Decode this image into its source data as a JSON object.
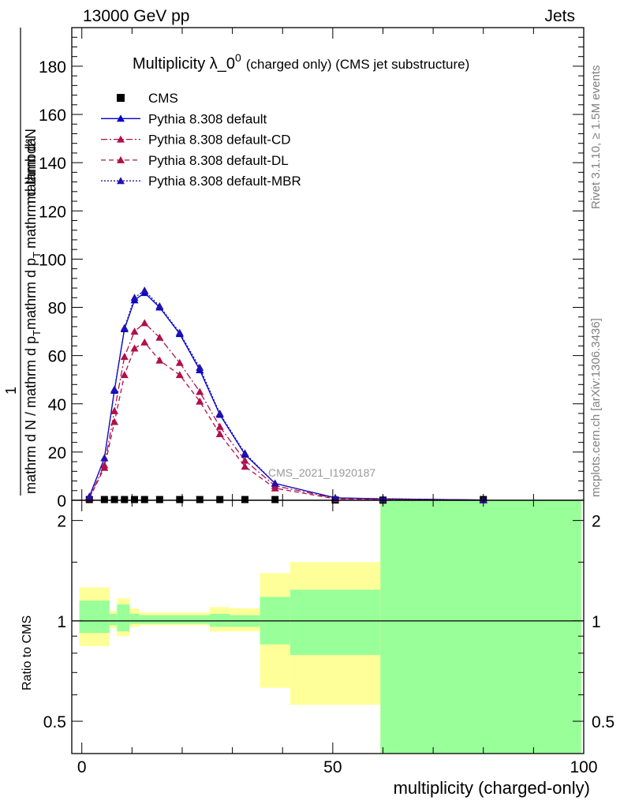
{
  "header": {
    "left": "13000 GeV pp",
    "right": "Jets"
  },
  "side": {
    "rivet": "Rivet 3.1.10, ≥ 1.5M events",
    "mcplots": "mcplots.cern.ch [arXiv:1306.3436]"
  },
  "chart_data": [
    {
      "type": "line",
      "title": "Multiplicity λ_0",
      "title_sup": "0",
      "title_suffix": "(charged only) (CMS jet substructure)",
      "analysis_label": "CMS_2021_I1920187",
      "xlabel": "multiplicity (charged-only)",
      "ylabel": {
        "top": "mathrm d²N",
        "denominator": "mathrm d N / mathrm d p",
        "denominator_sub": "T",
        "mid": "mathrm d p",
        "mid_sub": "T",
        "end": "mathrm d lambda",
        "one": "1"
      },
      "xlim": [
        -2,
        100
      ],
      "ylim": [
        0,
        196
      ],
      "yticks": [
        0,
        20,
        40,
        60,
        80,
        100,
        120,
        140,
        160,
        180
      ],
      "xticks": [
        0,
        50,
        100
      ],
      "legend_position": "top-left",
      "x": [
        1.5,
        4.5,
        6.5,
        8.5,
        10.5,
        12.5,
        15.5,
        19.5,
        23.5,
        27.5,
        32.5,
        38.5,
        50.5,
        60,
        80
      ],
      "series": [
        {
          "name": "CMS",
          "style": "data",
          "color": "#000000",
          "values": [
            0.3,
            0.3,
            0.3,
            0.3,
            0.3,
            0.3,
            0.3,
            0.3,
            0.3,
            0.3,
            0.3,
            0.3,
            0.1,
            0.05,
            0.3
          ]
        },
        {
          "name": "Pythia 8.308 default",
          "style": "solid",
          "color": "#0000cc",
          "values": [
            1.5,
            17.5,
            45.5,
            71,
            83,
            86,
            80,
            69,
            54,
            35.5,
            19,
            7,
            1,
            0.6,
            0.1
          ]
        },
        {
          "name": "Pythia 8.308 default-CD",
          "style": "dashdot",
          "color": "#b0104a",
          "values": [
            1.0,
            14.5,
            37,
            59.5,
            70,
            73.5,
            67.5,
            57,
            45,
            30.5,
            16.5,
            6,
            0.8,
            0.5,
            0.1
          ]
        },
        {
          "name": "Pythia 8.308 default-DL",
          "style": "dashed",
          "color": "#b0104a",
          "values": [
            0.8,
            13.5,
            32.5,
            52,
            63,
            65.5,
            58,
            52,
            41,
            27.5,
            14,
            5,
            0.6,
            0.4,
            0.05
          ]
        },
        {
          "name": "Pythia 8.308 default-MBR",
          "style": "dotted",
          "color": "#2010b0",
          "values": [
            1.5,
            17.5,
            46,
            71.5,
            84,
            87,
            80.5,
            69.5,
            55,
            36,
            19.5,
            7,
            1,
            0.6,
            0.1
          ]
        }
      ]
    },
    {
      "type": "area",
      "ylabel": "Ratio to CMS",
      "ylim": [
        0.4,
        2.3
      ],
      "yscale": "log",
      "yticks": [
        0.5,
        1,
        2
      ],
      "xticks": [
        0,
        50,
        100
      ],
      "bands": [
        {
          "x0": -0.5,
          "x1": 5.5,
          "yellow": [
            0.84,
            1.26
          ],
          "green": [
            0.92,
            1.15
          ]
        },
        {
          "x0": 5.5,
          "x1": 7,
          "yellow": [
            0.95,
            1.07
          ],
          "green": [
            0.97,
            1.05
          ]
        },
        {
          "x0": 7,
          "x1": 9.5,
          "yellow": [
            0.9,
            1.17
          ],
          "green": [
            0.93,
            1.12
          ]
        },
        {
          "x0": 9.5,
          "x1": 11.5,
          "yellow": [
            0.96,
            1.09
          ],
          "green": [
            0.98,
            1.05
          ]
        },
        {
          "x0": 11.5,
          "x1": 25.5,
          "yellow": [
            0.97,
            1.06
          ],
          "green": [
            0.98,
            1.04
          ]
        },
        {
          "x0": 25.5,
          "x1": 29.5,
          "yellow": [
            0.93,
            1.1
          ],
          "green": [
            0.96,
            1.05
          ]
        },
        {
          "x0": 29.5,
          "x1": 35.5,
          "yellow": [
            0.93,
            1.09
          ],
          "green": [
            0.96,
            1.04
          ]
        },
        {
          "x0": 35.5,
          "x1": 41.5,
          "yellow": [
            0.63,
            1.39
          ],
          "green": [
            0.85,
            1.18
          ]
        },
        {
          "x0": 41.5,
          "x1": 59.5,
          "yellow": [
            0.56,
            1.5
          ],
          "green": [
            0.79,
            1.24
          ]
        },
        {
          "x0": 59.5,
          "x1": 99.5,
          "yellow": [
            0.4,
            2.3
          ],
          "green": [
            0.4,
            2.3
          ]
        }
      ]
    }
  ]
}
